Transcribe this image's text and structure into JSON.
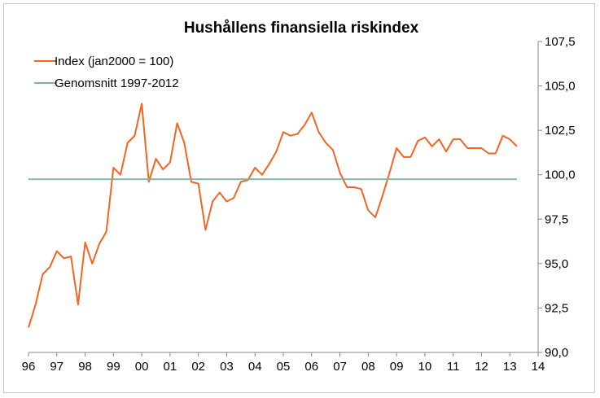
{
  "chart_data": {
    "type": "line",
    "title": "Hushållens finansiella riskindex",
    "x_tick_labels": [
      "96",
      "97",
      "98",
      "99",
      "00",
      "01",
      "02",
      "03",
      "04",
      "05",
      "06",
      "07",
      "08",
      "09",
      "10",
      "11",
      "12",
      "13",
      "14"
    ],
    "y_tick_labels": [
      "90,0",
      "92,5",
      "95,0",
      "97,5",
      "100,0",
      "102,5",
      "105,0",
      "107,5"
    ],
    "ylim": [
      90,
      107.5
    ],
    "y_ticks": [
      90,
      92.5,
      95,
      97.5,
      100,
      102.5,
      105,
      107.5
    ],
    "xlim": [
      1996,
      2014
    ],
    "y_axis_side": "right",
    "grid": false,
    "legend_position": "top-left",
    "series": [
      {
        "name": "Index (jan2000 = 100)",
        "color": "#f26522",
        "points": [
          [
            1996.0,
            91.4
          ],
          [
            1996.25,
            92.7
          ],
          [
            1996.5,
            94.4
          ],
          [
            1996.75,
            94.8
          ],
          [
            1997.0,
            95.7
          ],
          [
            1997.25,
            95.3
          ],
          [
            1997.5,
            95.4
          ],
          [
            1997.75,
            92.7
          ],
          [
            1998.0,
            96.2
          ],
          [
            1998.25,
            95.0
          ],
          [
            1998.5,
            96.1
          ],
          [
            1998.75,
            96.8
          ],
          [
            1999.0,
            100.4
          ],
          [
            1999.25,
            100.0
          ],
          [
            1999.5,
            101.8
          ],
          [
            1999.75,
            102.2
          ],
          [
            2000.0,
            104.0
          ],
          [
            2000.25,
            99.6
          ],
          [
            2000.5,
            100.9
          ],
          [
            2000.75,
            100.3
          ],
          [
            2001.0,
            100.7
          ],
          [
            2001.25,
            102.9
          ],
          [
            2001.5,
            101.8
          ],
          [
            2001.75,
            99.6
          ],
          [
            2002.0,
            99.5
          ],
          [
            2002.25,
            96.9
          ],
          [
            2002.5,
            98.5
          ],
          [
            2002.75,
            99.0
          ],
          [
            2003.0,
            98.5
          ],
          [
            2003.25,
            98.7
          ],
          [
            2003.5,
            99.6
          ],
          [
            2003.75,
            99.7
          ],
          [
            2004.0,
            100.4
          ],
          [
            2004.25,
            100.0
          ],
          [
            2004.5,
            100.6
          ],
          [
            2004.75,
            101.3
          ],
          [
            2005.0,
            102.4
          ],
          [
            2005.25,
            102.2
          ],
          [
            2005.5,
            102.3
          ],
          [
            2005.75,
            102.8
          ],
          [
            2006.0,
            103.5
          ],
          [
            2006.25,
            102.4
          ],
          [
            2006.5,
            101.8
          ],
          [
            2006.75,
            101.4
          ],
          [
            2007.0,
            100.1
          ],
          [
            2007.25,
            99.3
          ],
          [
            2007.5,
            99.3
          ],
          [
            2007.75,
            99.2
          ],
          [
            2008.0,
            98.0
          ],
          [
            2008.25,
            97.6
          ],
          [
            2008.5,
            98.8
          ],
          [
            2008.75,
            100.1
          ],
          [
            2009.0,
            101.5
          ],
          [
            2009.25,
            101.0
          ],
          [
            2009.5,
            101.0
          ],
          [
            2009.75,
            101.9
          ],
          [
            2010.0,
            102.1
          ],
          [
            2010.25,
            101.6
          ],
          [
            2010.5,
            102.0
          ],
          [
            2010.75,
            101.3
          ],
          [
            2011.0,
            102.0
          ],
          [
            2011.25,
            102.0
          ],
          [
            2011.5,
            101.5
          ],
          [
            2011.75,
            101.5
          ],
          [
            2012.0,
            101.5
          ],
          [
            2012.25,
            101.2
          ],
          [
            2012.5,
            101.2
          ],
          [
            2012.75,
            102.2
          ],
          [
            2013.0,
            102.0
          ],
          [
            2013.25,
            101.6
          ]
        ]
      },
      {
        "name": "Genomsnitt 1997-2012",
        "color": "#7fb3a6",
        "points": [
          [
            1996.0,
            99.75
          ],
          [
            2013.25,
            99.75
          ]
        ]
      }
    ]
  }
}
